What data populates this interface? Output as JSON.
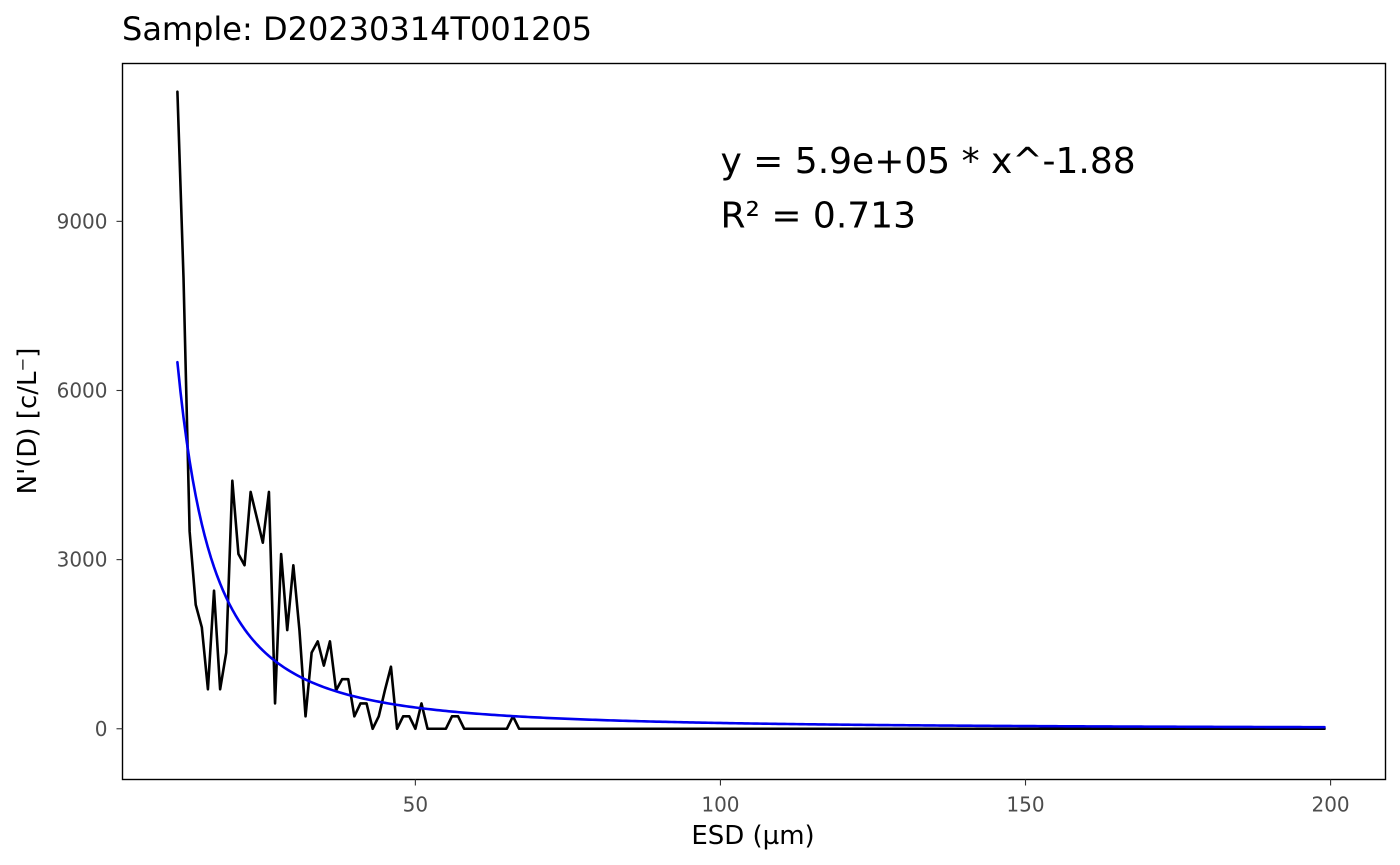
{
  "chart_data": {
    "type": "line",
    "title": "Sample: D20230314T001205",
    "xlabel": "ESD (µm)",
    "ylabel": "N'(D) [c/L⁻]",
    "xlim": [
      2,
      209
    ],
    "ylim": [
      -900,
      11800
    ],
    "grid": false,
    "x_ticks": [
      50,
      100,
      150,
      200
    ],
    "x_tick_labels": [
      "50",
      "100",
      "150",
      "200"
    ],
    "y_ticks": [
      0,
      3000,
      6000,
      9000
    ],
    "y_tick_labels": [
      "0",
      "3000",
      "6000",
      "9000"
    ],
    "annotations": [
      {
        "text": "y = 5.9e+05 * x^-1.88",
        "x": 100,
        "y": 9860
      },
      {
        "text": "R² = 0.713",
        "x": 100,
        "y": 8890
      }
    ],
    "series": [
      {
        "color": "#000000",
        "points": [
          [
            11,
            11300
          ],
          [
            12,
            8000
          ],
          [
            13,
            3500
          ],
          [
            14,
            2200
          ],
          [
            15,
            1800
          ],
          [
            16,
            700
          ],
          [
            17,
            2450
          ],
          [
            18,
            700
          ],
          [
            19,
            1350
          ],
          [
            20,
            4400
          ],
          [
            21,
            3100
          ],
          [
            22,
            2900
          ],
          [
            23,
            4200
          ],
          [
            24,
            3750
          ],
          [
            25,
            3300
          ],
          [
            26,
            4200
          ],
          [
            27,
            450
          ],
          [
            28,
            3100
          ],
          [
            29,
            1750
          ],
          [
            30,
            2900
          ],
          [
            31,
            1750
          ],
          [
            32,
            220
          ],
          [
            33,
            1350
          ],
          [
            34,
            1550
          ],
          [
            35,
            1120
          ],
          [
            36,
            1550
          ],
          [
            37,
            680
          ],
          [
            38,
            880
          ],
          [
            39,
            880
          ],
          [
            40,
            220
          ],
          [
            41,
            450
          ],
          [
            42,
            450
          ],
          [
            43,
            0
          ],
          [
            44,
            220
          ],
          [
            45,
            680
          ],
          [
            46,
            1100
          ],
          [
            47,
            0
          ],
          [
            48,
            220
          ],
          [
            49,
            220
          ],
          [
            50,
            0
          ],
          [
            51,
            450
          ],
          [
            52,
            0
          ],
          [
            53,
            0
          ],
          [
            54,
            0
          ],
          [
            55,
            0
          ],
          [
            56,
            220
          ],
          [
            57,
            220
          ],
          [
            58,
            0
          ],
          [
            59,
            0
          ],
          [
            60,
            0
          ],
          [
            61,
            0
          ],
          [
            62,
            0
          ],
          [
            63,
            0
          ],
          [
            64,
            0
          ],
          [
            65,
            0
          ],
          [
            66,
            220
          ],
          [
            67,
            0
          ],
          [
            68,
            0
          ],
          [
            80,
            0
          ],
          [
            100,
            0
          ],
          [
            120,
            0
          ],
          [
            140,
            0
          ],
          [
            160,
            0
          ],
          [
            180,
            0
          ],
          [
            199,
            0
          ]
        ]
      },
      {
        "color": "#0000ee",
        "model": "power",
        "coefficient": 590000,
        "exponent": -1.88,
        "x_range": [
          11,
          199
        ]
      }
    ]
  }
}
